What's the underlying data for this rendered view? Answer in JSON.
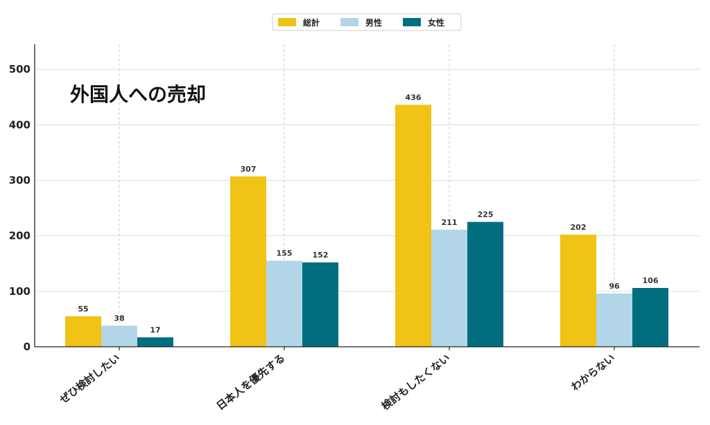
{
  "chart_data": {
    "type": "bar",
    "title": "外国人への売却",
    "categories": [
      "ぜひ検討したい",
      "日本人を優先する",
      "検討もしたくない",
      "わからない"
    ],
    "series": [
      {
        "name": "総計",
        "values": [
          55,
          307,
          436,
          202
        ],
        "color": "#f0c314"
      },
      {
        "name": "男性",
        "values": [
          38,
          155,
          211,
          96
        ],
        "color": "#b2d6e8"
      },
      {
        "name": "女性",
        "values": [
          17,
          152,
          225,
          106
        ],
        "color": "#006e7f"
      }
    ],
    "yticks": [
      0,
      100,
      200,
      300,
      400,
      500
    ],
    "ylim": [
      0,
      545
    ],
    "xlabel": "",
    "ylabel": "",
    "grid": true,
    "legend_position": "top-center"
  }
}
